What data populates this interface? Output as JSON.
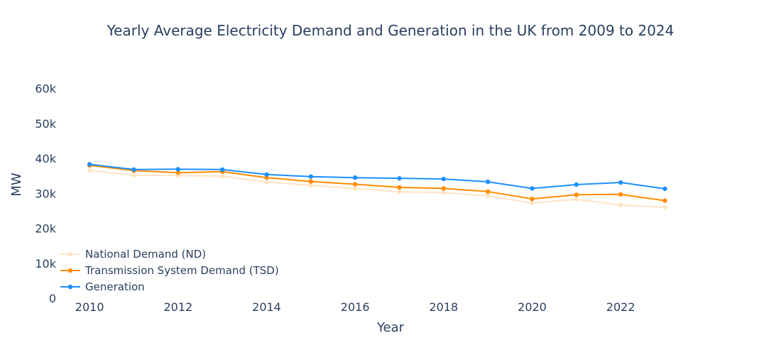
{
  "chart_data": {
    "type": "line",
    "title": "Yearly Average Electricity Demand and Generation in the UK from 2009 to 2024",
    "xlabel": "Year",
    "ylabel": "MW",
    "xlim": [
      2009.5,
      2024.5
    ],
    "ylim": [
      0,
      65000
    ],
    "x_ticks": [
      2010,
      2012,
      2014,
      2016,
      2018,
      2020,
      2022
    ],
    "x_tick_labels": [
      "2010",
      "2012",
      "2014",
      "2016",
      "2018",
      "2020",
      "2022"
    ],
    "y_ticks": [
      0,
      10000,
      20000,
      30000,
      40000,
      50000,
      60000
    ],
    "y_tick_labels": [
      "0",
      "10k",
      "20k",
      "30k",
      "40k",
      "50k",
      "60k"
    ],
    "grid": false,
    "legend_position": "bottom-left",
    "x": [
      2010,
      2011,
      2012,
      2013,
      2014,
      2015,
      2016,
      2017,
      2018,
      2019,
      2020,
      2021,
      2022,
      2023
    ],
    "series": [
      {
        "name": "National Demand (ND)",
        "color": "#ffe4c4",
        "values": [
          36600,
          35200,
          35100,
          34900,
          33200,
          32300,
          31400,
          30400,
          30200,
          29300,
          27200,
          28300,
          26700,
          26000
        ]
      },
      {
        "name": "Transmission System Demand (TSD)",
        "color": "#ff8c00",
        "values": [
          38000,
          36500,
          35900,
          36200,
          34500,
          33400,
          32600,
          31700,
          31400,
          30500,
          28400,
          29600,
          29700,
          27900
        ]
      },
      {
        "name": "Generation",
        "color": "#1e90ff",
        "values": [
          38300,
          36800,
          36900,
          36800,
          35400,
          34800,
          34500,
          34300,
          34100,
          33300,
          31400,
          32500,
          33100,
          31300
        ]
      }
    ]
  }
}
